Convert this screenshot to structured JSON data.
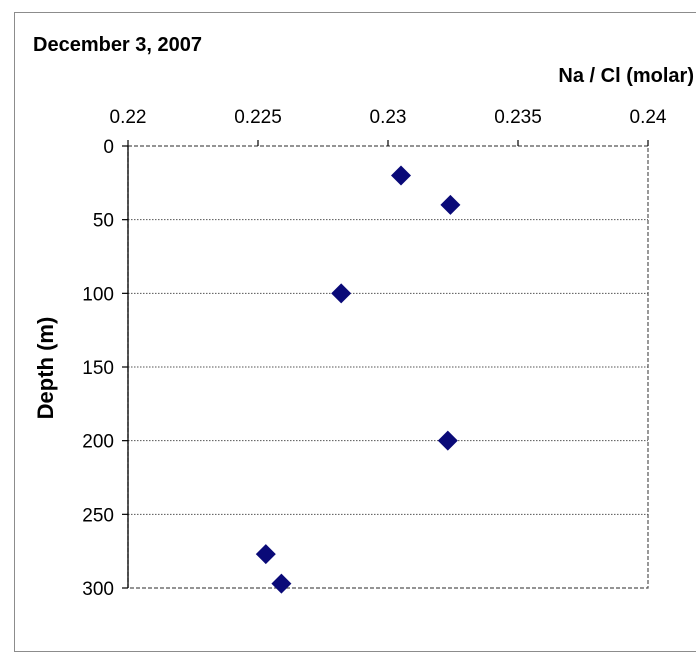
{
  "chart_data": {
    "type": "scatter",
    "title": "December 3, 2007",
    "xlabel": "Na / Cl  (molar)",
    "ylabel": "Depth  (m)",
    "x_axis_position": "top",
    "y_inverted": true,
    "xlim": [
      0.22,
      0.24
    ],
    "ylim": [
      0,
      300
    ],
    "x_ticks": [
      "0.22",
      "0.225",
      "0.23",
      "0.235",
      "0.24"
    ],
    "y_ticks": [
      "0",
      "50",
      "100",
      "150",
      "200",
      "250",
      "300"
    ],
    "grid": "horizontal",
    "marker": "diamond",
    "marker_color": "#0a0a78",
    "series": [
      {
        "points": [
          {
            "x": 0.2305,
            "y": 20
          },
          {
            "x": 0.2324,
            "y": 40
          },
          {
            "x": 0.2282,
            "y": 100
          },
          {
            "x": 0.2323,
            "y": 200
          },
          {
            "x": 0.2253,
            "y": 277
          },
          {
            "x": 0.2259,
            "y": 297
          }
        ]
      }
    ]
  }
}
